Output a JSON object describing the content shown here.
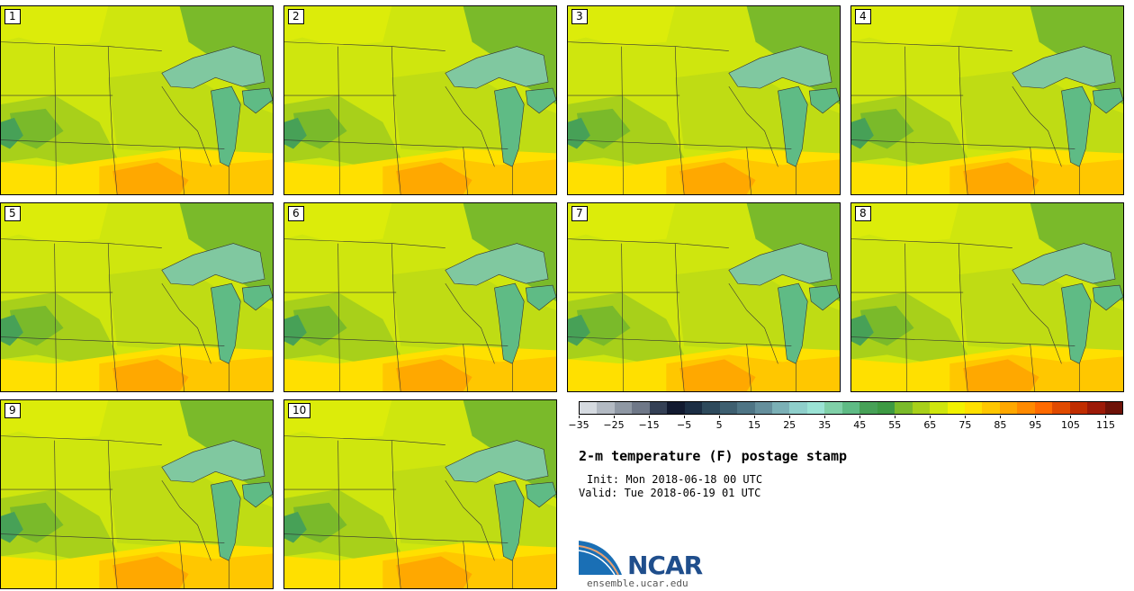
{
  "panels": [
    {
      "label": "1"
    },
    {
      "label": "2"
    },
    {
      "label": "3"
    },
    {
      "label": "4"
    },
    {
      "label": "5"
    },
    {
      "label": "6"
    },
    {
      "label": "7"
    },
    {
      "label": "8"
    },
    {
      "label": "9"
    },
    {
      "label": "10"
    }
  ],
  "colorbar": {
    "colors": [
      "#d5dae0",
      "#b3bac3",
      "#8f98a4",
      "#6f7888",
      "#344055",
      "#121a30",
      "#1c2e44",
      "#2e4a5c",
      "#3e5f70",
      "#4f7585",
      "#658f9c",
      "#7bb0b6",
      "#8fcfcb",
      "#9be3d5",
      "#80d0a8",
      "#5fbb85",
      "#47a157",
      "#3d9a43",
      "#7aba2a",
      "#a8d01a",
      "#cfe60e",
      "#f2f200",
      "#ffe000",
      "#ffc700",
      "#ffa800",
      "#ff8a00",
      "#ff6a00",
      "#e04a00",
      "#c02d00",
      "#9c1a08",
      "#6e1208"
    ],
    "ticks": [
      "−35",
      "−25",
      "−15",
      "−5",
      "5",
      "15",
      "25",
      "35",
      "45",
      "55",
      "65",
      "75",
      "85",
      "95",
      "105",
      "115"
    ]
  },
  "title": "2-m temperature (F) postage stamp",
  "init": "Init: Mon 2018-06-18 00 UTC",
  "valid": "Valid: Tue 2018-06-19 01 UTC",
  "logo": {
    "name": "NCAR",
    "url": "ensemble.ucar.edu",
    "blue": "#1a6fb5"
  }
}
